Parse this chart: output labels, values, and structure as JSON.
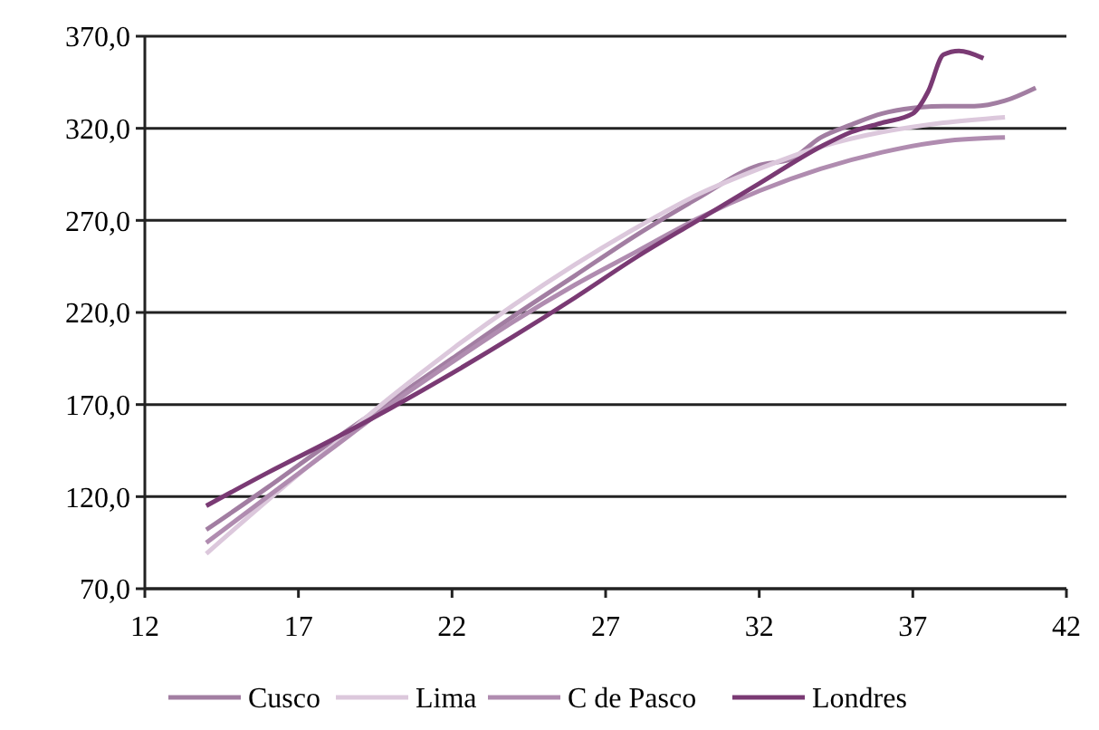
{
  "chart_data": {
    "type": "line",
    "xlim": [
      12,
      42
    ],
    "xticks": [
      12,
      17,
      22,
      27,
      32,
      37,
      42
    ],
    "ylim": [
      70,
      370
    ],
    "yticks": [
      {
        "value": 70,
        "label": "70,0"
      },
      {
        "value": 120,
        "label": "120,0"
      },
      {
        "value": 170,
        "label": "170,0"
      },
      {
        "value": 220,
        "label": "220,0"
      },
      {
        "value": 270,
        "label": "270,0"
      },
      {
        "value": 320,
        "label": "320,0"
      },
      {
        "value": 370,
        "label": "370,0"
      }
    ],
    "grid": "y",
    "legend": "bottom",
    "line_style": "solid",
    "marker": "none",
    "series": [
      {
        "name": "Cusco",
        "color": "#a27ea2",
        "x": [
          14,
          16,
          18,
          20,
          22,
          24,
          26,
          28,
          30,
          32,
          33,
          34,
          35,
          36,
          37,
          38,
          39,
          40,
          41
        ],
        "values": [
          102,
          125,
          149,
          172,
          195,
          218,
          240,
          262,
          282,
          300,
          303,
          315,
          322,
          328,
          331,
          332,
          332,
          335,
          342
        ]
      },
      {
        "name": "Lima",
        "color": "#dcc8dc",
        "x": [
          14,
          16,
          18,
          20,
          22,
          24,
          26,
          28,
          30,
          32,
          34,
          36,
          38,
          40
        ],
        "values": [
          89,
          118,
          146,
          174,
          200,
          224,
          246,
          266,
          284,
          298,
          310,
          318,
          323,
          326
        ]
      },
      {
        "name": "C de Pasco",
        "color": "#b08cb0",
        "x": [
          14,
          16,
          18,
          20,
          22,
          24,
          26,
          28,
          30,
          32,
          34,
          36,
          38,
          40
        ],
        "values": [
          95,
          120,
          145,
          170,
          193,
          215,
          235,
          253,
          271,
          286,
          298,
          307,
          313,
          315
        ]
      },
      {
        "name": "Londres",
        "color": "#7a3a74",
        "x": [
          14,
          16,
          18,
          20,
          22,
          24,
          26,
          28,
          30,
          32,
          34,
          35,
          36,
          37,
          37.5,
          38,
          38.5,
          39.3
        ],
        "values": [
          115,
          133,
          150,
          168,
          187,
          207,
          228,
          250,
          270,
          290,
          310,
          318,
          323,
          328,
          340,
          360,
          362,
          358
        ]
      }
    ]
  }
}
